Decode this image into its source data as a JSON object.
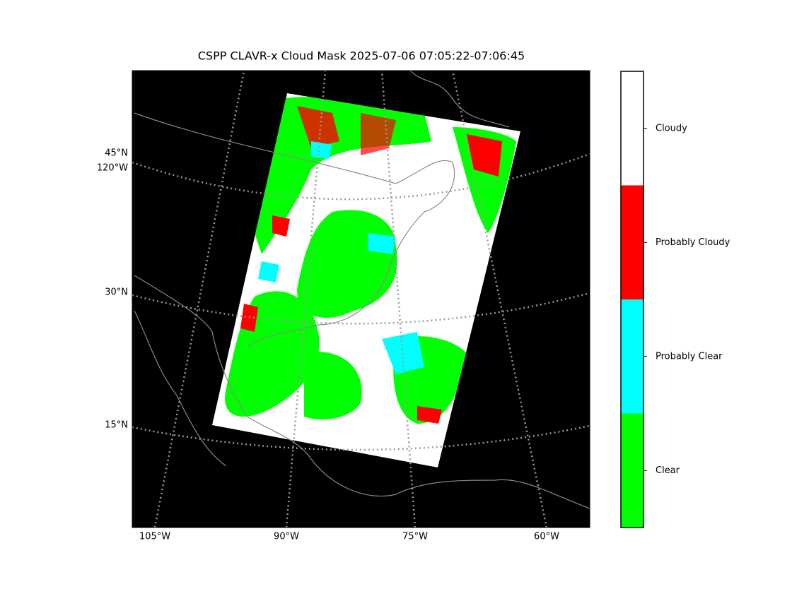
{
  "title": "CSPP CLAVR-x Cloud Mask 2025-07-06 07:05:22-07:06:45",
  "map": {
    "lat_labels": [
      "45°N",
      "120°W",
      "30°N",
      "15°N"
    ],
    "lon_labels": [
      "105°W",
      "90°W",
      "75°W",
      "60°W"
    ]
  },
  "colorbar": {
    "categories": [
      {
        "label": "Clear",
        "color": "#00ff00"
      },
      {
        "label": "Probably Clear",
        "color": "#00ffff"
      },
      {
        "label": "Probably Cloudy",
        "color": "#ff0000"
      },
      {
        "label": "Cloudy",
        "color": "#ffffff"
      }
    ]
  }
}
